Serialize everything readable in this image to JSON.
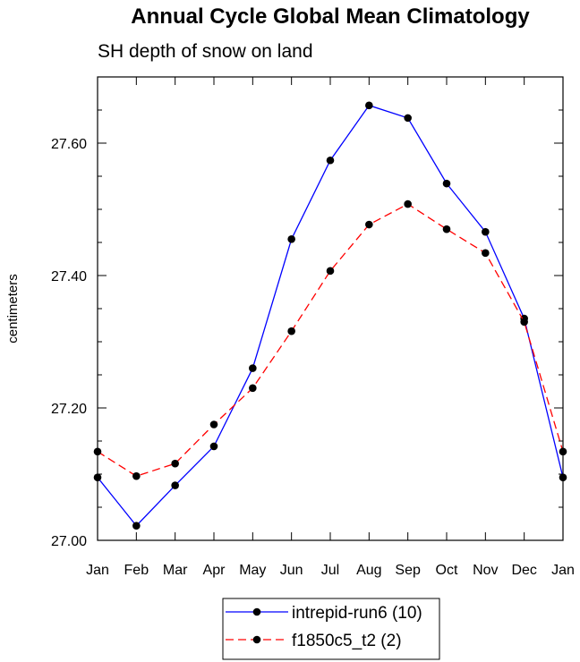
{
  "chart_data": {
    "type": "line",
    "title": "Annual Cycle Global Mean Climatology",
    "subtitle": "SH depth of snow on land",
    "xlabel": "",
    "ylabel": "centimeters",
    "categories": [
      "Jan",
      "Feb",
      "Mar",
      "Apr",
      "May",
      "Jun",
      "Jul",
      "Aug",
      "Sep",
      "Oct",
      "Nov",
      "Dec",
      "Jan"
    ],
    "yticks": [
      "27.00",
      "27.20",
      "27.40",
      "27.60"
    ],
    "ylim": [
      27.0,
      27.7
    ],
    "grid": false,
    "legend_placement": "bottom-center",
    "series": [
      {
        "name": "intrepid-run6 (10)",
        "color": "#0000ff",
        "line_style": "solid",
        "marker": "filled-circle",
        "values": [
          27.095,
          27.022,
          27.083,
          27.142,
          27.26,
          27.455,
          27.574,
          27.657,
          27.638,
          27.539,
          27.466,
          27.335,
          27.095
        ]
      },
      {
        "name": "f1850c5_t2 (2)",
        "color": "#ff0000",
        "line_style": "dashed",
        "marker": "filled-circle",
        "values": [
          27.134,
          27.097,
          27.116,
          27.175,
          27.23,
          27.316,
          27.407,
          27.477,
          27.508,
          27.47,
          27.434,
          27.33,
          27.134
        ]
      }
    ]
  }
}
